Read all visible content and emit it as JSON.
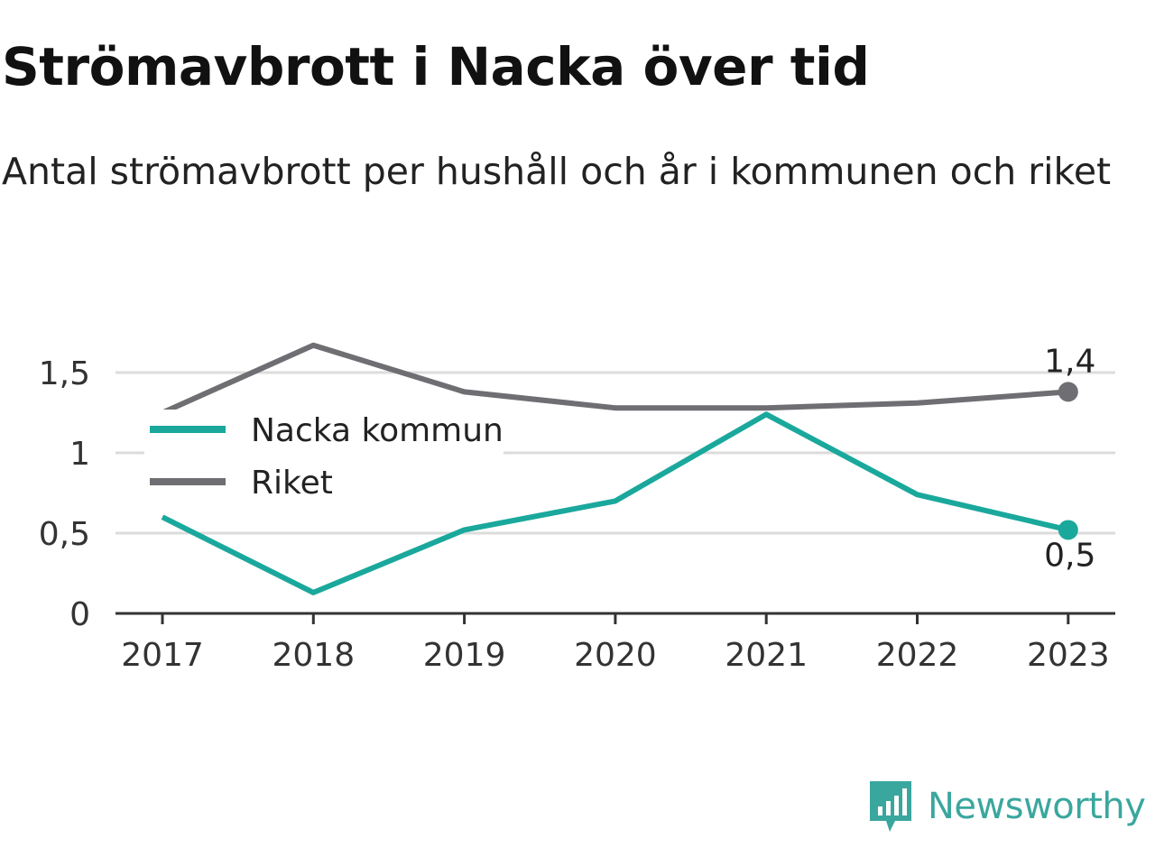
{
  "chart_data": {
    "type": "line",
    "title": "Strömavbrott i Nacka över tid",
    "subtitle": "Antal strömavbrott per hushåll och år i kommunen och riket",
    "x": [
      "2017",
      "2018",
      "2019",
      "2020",
      "2021",
      "2022",
      "2023"
    ],
    "series": [
      {
        "name": "Nacka kommun",
        "color": "#1aa89c",
        "values": [
          0.6,
          0.13,
          0.52,
          0.7,
          1.24,
          0.74,
          0.52
        ]
      },
      {
        "name": "Riket",
        "color": "#6e6e73",
        "values": [
          1.25,
          1.67,
          1.38,
          1.28,
          1.28,
          1.31,
          1.38
        ]
      }
    ],
    "yticks": [
      0,
      0.5,
      1,
      1.5
    ],
    "ytick_labels": [
      "0",
      "0,5",
      "1",
      "1,5"
    ],
    "ylim": [
      0,
      1.7
    ],
    "end_labels": {
      "Riket": "1,4",
      "Nacka kommun": "0,5"
    },
    "grid": true,
    "legend": "top-left"
  },
  "brand": {
    "name": "Newsworthy",
    "color": "#3aa79e",
    "icon": "bar-chart-speech-bubble-icon"
  }
}
